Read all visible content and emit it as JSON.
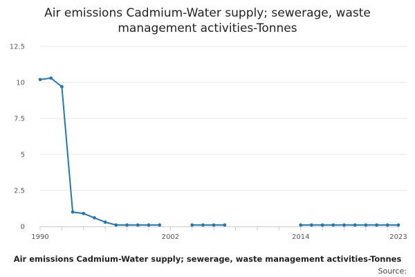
{
  "chart_data": {
    "type": "line",
    "title_lines": [
      "Air emissions Cadmium-Water supply; sewerage, waste",
      "management activities-Tonnes"
    ],
    "xlabel": "Air emissions Cadmium-Water supply; sewerage, waste management activities-Tonnes",
    "source_label": "Source:",
    "ylim": [
      0,
      12.5
    ],
    "xlim": [
      1990,
      2023
    ],
    "y_ticks": [
      "0",
      "2.5",
      "5",
      "7.5",
      "10",
      "12.5"
    ],
    "y_tick_values": [
      0,
      2.5,
      5,
      7.5,
      10,
      12.5
    ],
    "x_tick_labels": [
      "1990",
      "2002",
      "2014",
      "2023"
    ],
    "x_tick_label_values": [
      1990,
      2002,
      2014,
      2023
    ],
    "x_minor_ticks": [
      1990,
      1992,
      1994,
      1996,
      1998,
      2000,
      2002,
      2004,
      2006,
      2008,
      2010,
      2012,
      2014,
      2016,
      2018,
      2020,
      2022,
      2023
    ],
    "series": [
      {
        "name": "Air emissions Cadmium-Water supply; sewerage, waste management activities-Tonnes",
        "color": "#1f78b4",
        "x": [
          1990,
          1991,
          1992,
          1993,
          1994,
          1995,
          1996,
          1997,
          1998,
          1999,
          2000,
          2001,
          2002,
          2003,
          2004,
          2005,
          2006,
          2007,
          2008,
          2009,
          2010,
          2011,
          2012,
          2013,
          2014,
          2015,
          2016,
          2017,
          2018,
          2019,
          2020,
          2021,
          2022,
          2023
        ],
        "values": [
          10.2,
          10.3,
          9.7,
          1.0,
          0.9,
          0.6,
          0.3,
          0.1,
          0.1,
          0.1,
          0.1,
          0.1,
          null,
          null,
          0.1,
          0.1,
          0.1,
          0.1,
          null,
          null,
          null,
          null,
          null,
          null,
          0.1,
          0.1,
          0.1,
          0.1,
          0.1,
          0.1,
          0.1,
          0.1,
          0.1,
          0.1
        ]
      }
    ],
    "colors": {
      "grid": "#e6e6e6",
      "axis": "#cccccc",
      "line": "#1f78b4"
    }
  }
}
